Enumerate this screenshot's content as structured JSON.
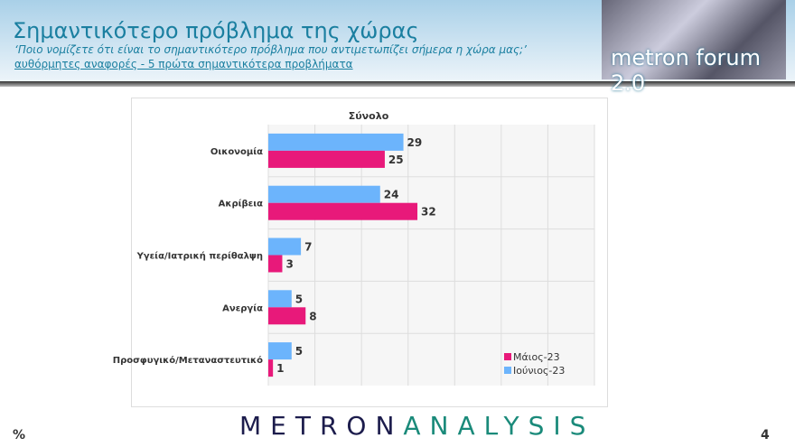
{
  "header": {
    "title": "Σημαντικότερο πρόβλημα της χώρας",
    "question": "‘Ποιο νομίζετε ότι  είναι το σημαντικότερο πρόβλημα που αντιμετωπίζει σήμερα η χώρα μας;’",
    "note": "αυθόρμητες αναφορές - 5 πρώτα σημαντικότερα προβλήματα",
    "logo_text": "metron forum 2.0"
  },
  "footer": {
    "brand_a": "METRON",
    "brand_b": "ANALYSIS",
    "unit": "%",
    "page": "4"
  },
  "chart_data": {
    "type": "bar",
    "orientation": "horizontal",
    "title": "Σύνολο",
    "categories": [
      "Οικονομία",
      "Ακρίβεια",
      "Υγεία/Ιατρική περίθαλψη",
      "Ανεργία",
      "Προσφυγικό/Μεταναστευτικό"
    ],
    "series": [
      {
        "name": "Ιούνιος-23",
        "color": "#6cb4fc",
        "values": [
          29,
          24,
          7,
          5,
          5
        ]
      },
      {
        "name": "Μάιος-23",
        "color": "#e8197a",
        "values": [
          25,
          32,
          3,
          8,
          1
        ]
      }
    ],
    "xlim": [
      0,
      70
    ],
    "grid": true,
    "legend": "bottom-right",
    "legend_order": [
      "Μάιος-23",
      "Ιούνιος-23"
    ]
  }
}
